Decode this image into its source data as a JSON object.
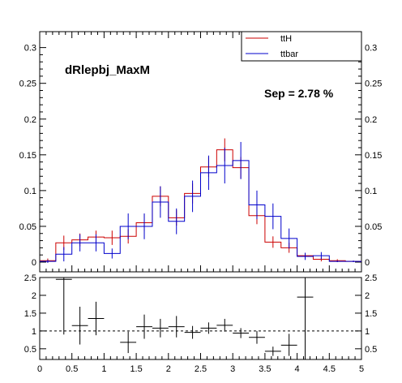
{
  "chart_data": [
    {
      "type": "histogram",
      "annotation_title": "dRlepbj_MaxM",
      "annotation_sep": "Sep = 2.78 %",
      "xlim": [
        0,
        5
      ],
      "ylim": [
        0,
        0.32
      ],
      "bin_edges": [
        0,
        0.25,
        0.5,
        0.75,
        1.0,
        1.25,
        1.5,
        1.75,
        2.0,
        2.25,
        2.5,
        2.75,
        3.0,
        3.25,
        3.5,
        3.75,
        4.0,
        4.25,
        4.5,
        4.75,
        5.0
      ],
      "y_ticks": [
        {
          "value": 0,
          "label": "0"
        },
        {
          "value": 0.05,
          "label": "0.05"
        },
        {
          "value": 0.1,
          "label": "0.1"
        },
        {
          "value": 0.15,
          "label": "0.15"
        },
        {
          "value": 0.2,
          "label": "0.2"
        },
        {
          "value": 0.25,
          "label": "0.25"
        },
        {
          "value": 0.3,
          "label": "0.3"
        }
      ],
      "series": [
        {
          "name": "ttH",
          "color": "#cc0000",
          "values": [
            0.002,
            0.027,
            0.031,
            0.035,
            0.034,
            0.036,
            0.055,
            0.092,
            0.062,
            0.096,
            0.133,
            0.157,
            0.132,
            0.065,
            0.028,
            0.02,
            0.009,
            0.004,
            0.002,
            0.001
          ],
          "errors": [
            0.003,
            0.01,
            0.009,
            0.009,
            0.01,
            0.01,
            0.012,
            0.014,
            0.011,
            0.014,
            0.014,
            0.016,
            0.015,
            0.012,
            0.008,
            0.007,
            0.004,
            0.003,
            0.002,
            0.001
          ]
        },
        {
          "name": "ttbar",
          "color": "#0000cc",
          "values": [
            0.001,
            0.011,
            0.027,
            0.027,
            0.012,
            0.05,
            0.05,
            0.084,
            0.057,
            0.092,
            0.125,
            0.135,
            0.142,
            0.08,
            0.064,
            0.033,
            0.008,
            0.009,
            0.001,
            0.001
          ],
          "errors": [
            0.002,
            0.01,
            0.012,
            0.012,
            0.007,
            0.018,
            0.018,
            0.022,
            0.018,
            0.022,
            0.024,
            0.025,
            0.026,
            0.02,
            0.018,
            0.014,
            0.005,
            0.005,
            0.001,
            0.001
          ]
        }
      ]
    },
    {
      "type": "ratio",
      "xlim": [
        0,
        5
      ],
      "ylim": [
        0.2,
        2.5
      ],
      "reference_line": 1,
      "x_ticks": [
        {
          "value": 0,
          "label": "0"
        },
        {
          "value": 0.5,
          "label": "0.5"
        },
        {
          "value": 1,
          "label": "1"
        },
        {
          "value": 1.5,
          "label": "1.5"
        },
        {
          "value": 2,
          "label": "2"
        },
        {
          "value": 2.5,
          "label": "2.5"
        },
        {
          "value": 3,
          "label": "3"
        },
        {
          "value": 3.5,
          "label": "3.5"
        },
        {
          "value": 4,
          "label": "4"
        },
        {
          "value": 4.5,
          "label": "4.5"
        },
        {
          "value": 5,
          "label": "5"
        }
      ],
      "y_ticks": [
        {
          "value": 0.5,
          "label": "0.5"
        },
        {
          "value": 1,
          "label": "1"
        },
        {
          "value": 1.5,
          "label": "1.5"
        },
        {
          "value": 2,
          "label": "2"
        },
        {
          "value": 2.5,
          "label": "2.5"
        }
      ],
      "points": [
        {
          "x": 0.375,
          "y": 2.45,
          "xerr": 0.125,
          "ylo": 0.9,
          "yhi": 2.5
        },
        {
          "x": 0.625,
          "y": 1.15,
          "xerr": 0.125,
          "ylo": 0.62,
          "yhi": 1.68
        },
        {
          "x": 0.875,
          "y": 1.35,
          "xerr": 0.125,
          "ylo": 0.88,
          "yhi": 1.82
        },
        {
          "x": 1.375,
          "y": 0.68,
          "xerr": 0.125,
          "ylo": 0.38,
          "yhi": 0.98
        },
        {
          "x": 1.625,
          "y": 1.12,
          "xerr": 0.125,
          "ylo": 0.78,
          "yhi": 1.46
        },
        {
          "x": 1.875,
          "y": 1.08,
          "xerr": 0.125,
          "ylo": 0.82,
          "yhi": 1.34
        },
        {
          "x": 2.125,
          "y": 1.12,
          "xerr": 0.125,
          "ylo": 0.82,
          "yhi": 1.42
        },
        {
          "x": 2.375,
          "y": 0.96,
          "xerr": 0.125,
          "ylo": 0.78,
          "yhi": 1.14
        },
        {
          "x": 2.625,
          "y": 1.08,
          "xerr": 0.125,
          "ylo": 0.92,
          "yhi": 1.24
        },
        {
          "x": 2.875,
          "y": 1.16,
          "xerr": 0.125,
          "ylo": 0.98,
          "yhi": 1.34
        },
        {
          "x": 3.125,
          "y": 0.94,
          "xerr": 0.125,
          "ylo": 0.8,
          "yhi": 1.08
        },
        {
          "x": 3.375,
          "y": 0.82,
          "xerr": 0.125,
          "ylo": 0.64,
          "yhi": 1.0
        },
        {
          "x": 3.625,
          "y": 0.43,
          "xerr": 0.125,
          "ylo": 0.3,
          "yhi": 0.56
        },
        {
          "x": 3.875,
          "y": 0.6,
          "xerr": 0.125,
          "ylo": 0.3,
          "yhi": 0.92
        },
        {
          "x": 4.125,
          "y": 1.95,
          "xerr": 0.125,
          "ylo": 0.2,
          "yhi": 2.5
        }
      ]
    }
  ]
}
